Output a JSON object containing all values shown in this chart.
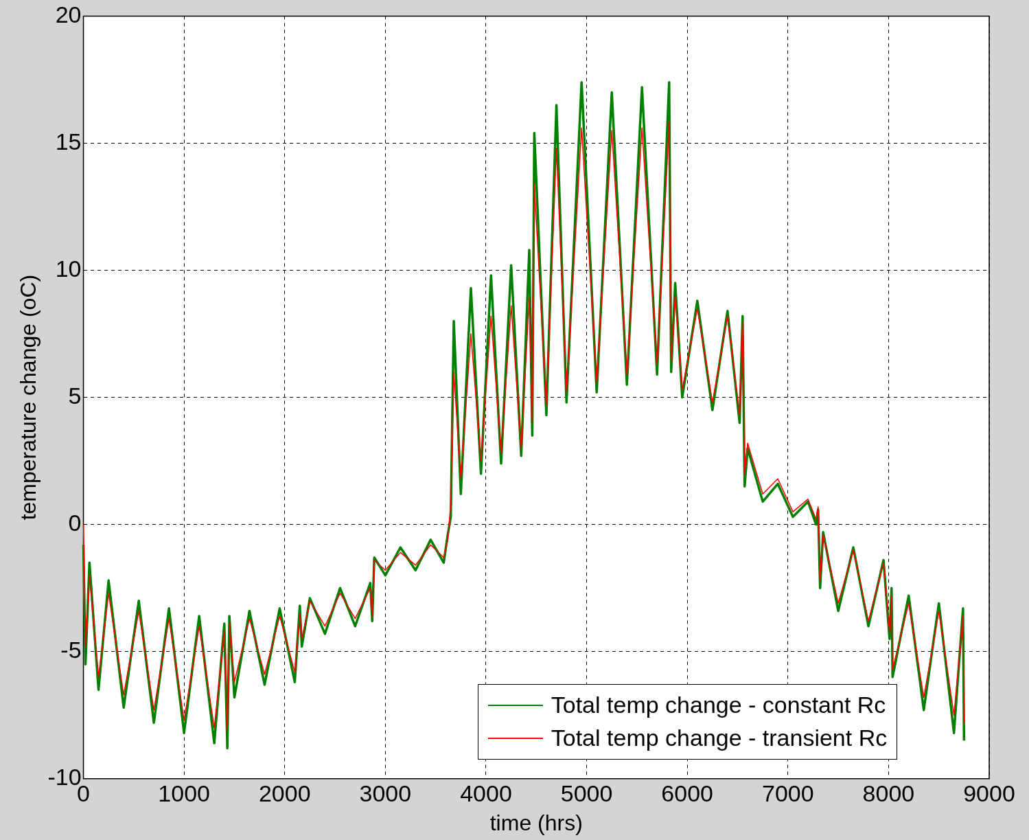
{
  "chart_data": {
    "type": "line",
    "xlabel": "time (hrs)",
    "ylabel": "temperature change (oC)",
    "xlim": [
      0,
      9000
    ],
    "xticks": [
      0,
      1000,
      2000,
      3000,
      4000,
      5000,
      6000,
      7000,
      8000,
      9000
    ],
    "ylim": [
      -10,
      20
    ],
    "yticks": [
      -10,
      -5,
      0,
      5,
      10,
      15,
      20
    ],
    "grid": true,
    "legend": "bottom",
    "line_style": "solid",
    "marker": "none",
    "series": [
      {
        "name": "Total temp change - constant Rc",
        "color": "#008000",
        "x": [
          0,
          20,
          60,
          150,
          250,
          400,
          550,
          700,
          850,
          1000,
          1150,
          1300,
          1400,
          1430,
          1450,
          1500,
          1650,
          1800,
          1950,
          2100,
          2150,
          2170,
          2250,
          2400,
          2550,
          2700,
          2850,
          2870,
          2890,
          3000,
          3150,
          3300,
          3450,
          3580,
          3620,
          3650,
          3680,
          3750,
          3850,
          3950,
          4050,
          4150,
          4250,
          4350,
          4430,
          4460,
          4480,
          4600,
          4700,
          4800,
          4950,
          5100,
          5250,
          5400,
          5550,
          5700,
          5820,
          5840,
          5880,
          5950,
          6100,
          6250,
          6400,
          6520,
          6550,
          6570,
          6600,
          6750,
          6900,
          7050,
          7200,
          7280,
          7300,
          7320,
          7350,
          7500,
          7650,
          7800,
          7950,
          8010,
          8030,
          8040,
          8200,
          8350,
          8500,
          8650,
          8740,
          8750
        ],
        "values": [
          -0.8,
          -5.5,
          -1.5,
          -6.5,
          -2.2,
          -7.2,
          -3.0,
          -7.8,
          -3.3,
          -8.2,
          -3.6,
          -8.6,
          -3.9,
          -8.8,
          -3.6,
          -6.8,
          -3.4,
          -6.3,
          -3.3,
          -6.2,
          -3.2,
          -4.8,
          -2.9,
          -4.3,
          -2.5,
          -4.0,
          -2.3,
          -3.8,
          -1.3,
          -2.0,
          -0.9,
          -1.8,
          -0.6,
          -1.5,
          -0.4,
          0.3,
          8.0,
          1.2,
          9.3,
          2.0,
          9.8,
          2.4,
          10.2,
          2.7,
          10.8,
          3.5,
          15.4,
          4.3,
          16.5,
          4.8,
          17.4,
          5.2,
          17.0,
          5.5,
          17.2,
          5.9,
          17.4,
          6.0,
          9.5,
          5.0,
          8.8,
          4.5,
          8.4,
          4.0,
          8.2,
          1.5,
          3.0,
          0.9,
          1.6,
          0.3,
          0.9,
          0.0,
          0.6,
          -2.5,
          -0.3,
          -3.4,
          -0.9,
          -4.0,
          -1.4,
          -4.5,
          -2.5,
          -6.0,
          -2.8,
          -7.3,
          -3.1,
          -8.2,
          -3.3,
          -8.5
        ]
      },
      {
        "name": "Total temp change - transient Rc",
        "color": "#ff0000",
        "x": [
          0,
          20,
          60,
          150,
          250,
          400,
          550,
          700,
          850,
          1000,
          1150,
          1300,
          1400,
          1430,
          1450,
          1500,
          1650,
          1800,
          1950,
          2100,
          2150,
          2170,
          2250,
          2400,
          2550,
          2700,
          2850,
          2870,
          2890,
          3000,
          3150,
          3300,
          3450,
          3580,
          3620,
          3650,
          3680,
          3750,
          3850,
          3950,
          4050,
          4150,
          4250,
          4350,
          4430,
          4460,
          4480,
          4600,
          4700,
          4800,
          4950,
          5100,
          5250,
          5400,
          5550,
          5700,
          5820,
          5840,
          5880,
          5950,
          6100,
          6250,
          6400,
          6520,
          6550,
          6570,
          6600,
          6750,
          6900,
          7050,
          7200,
          7280,
          7300,
          7320,
          7350,
          7500,
          7650,
          7800,
          7950,
          8010,
          8030,
          8040,
          8200,
          8350,
          8500,
          8650,
          8740,
          8750
        ],
        "values": [
          0,
          -4.8,
          -2.0,
          -6.0,
          -2.7,
          -6.7,
          -3.4,
          -7.3,
          -3.7,
          -7.7,
          -4.0,
          -8.0,
          -4.2,
          -8.1,
          -3.9,
          -6.2,
          -3.7,
          -5.9,
          -3.6,
          -5.8,
          -3.5,
          -4.5,
          -3.0,
          -4.0,
          -2.7,
          -3.7,
          -2.5,
          -3.6,
          -1.4,
          -1.8,
          -1.1,
          -1.6,
          -0.8,
          -1.3,
          -0.6,
          0.8,
          6.0,
          1.8,
          7.5,
          2.5,
          8.2,
          2.8,
          8.6,
          3.0,
          8.9,
          4.0,
          13.4,
          4.7,
          14.8,
          5.2,
          15.6,
          5.6,
          15.5,
          5.9,
          15.6,
          6.3,
          15.8,
          6.4,
          9.0,
          5.3,
          8.5,
          4.8,
          8.2,
          4.3,
          8.0,
          2.0,
          3.2,
          1.2,
          1.8,
          0.5,
          1.0,
          0.2,
          0.7,
          -2.2,
          -0.4,
          -3.1,
          -1.0,
          -3.8,
          -1.5,
          -4.2,
          -2.8,
          -5.7,
          -3.1,
          -6.8,
          -3.4,
          -7.5,
          -3.6,
          -7.8
        ]
      }
    ]
  }
}
